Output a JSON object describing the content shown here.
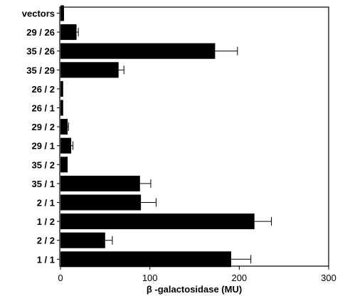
{
  "chart_data": {
    "type": "bar",
    "orientation": "horizontal",
    "categories": [
      "vectors",
      "29 / 26",
      "35 / 26",
      "35 / 29",
      "26 / 2",
      "26 / 1",
      "29 / 2",
      "29 / 1",
      "35 / 2",
      "35 / 1",
      "2 / 1",
      "1 / 2",
      "2 / 2",
      "1 / 1"
    ],
    "values": [
      4,
      18,
      173,
      65,
      3,
      3,
      8,
      12,
      8,
      89,
      90,
      217,
      50,
      191
    ],
    "errors": [
      0,
      2,
      25,
      6,
      0,
      0,
      1,
      2,
      0,
      12,
      17,
      19,
      8,
      22
    ],
    "xlabel": "β -galactosidase (MU)",
    "ylabel": "",
    "title": "",
    "xlim": [
      0,
      300
    ],
    "xticks": [
      0,
      100,
      200,
      300
    ],
    "grid": false,
    "legend": "none",
    "bar_color": "#000000"
  }
}
